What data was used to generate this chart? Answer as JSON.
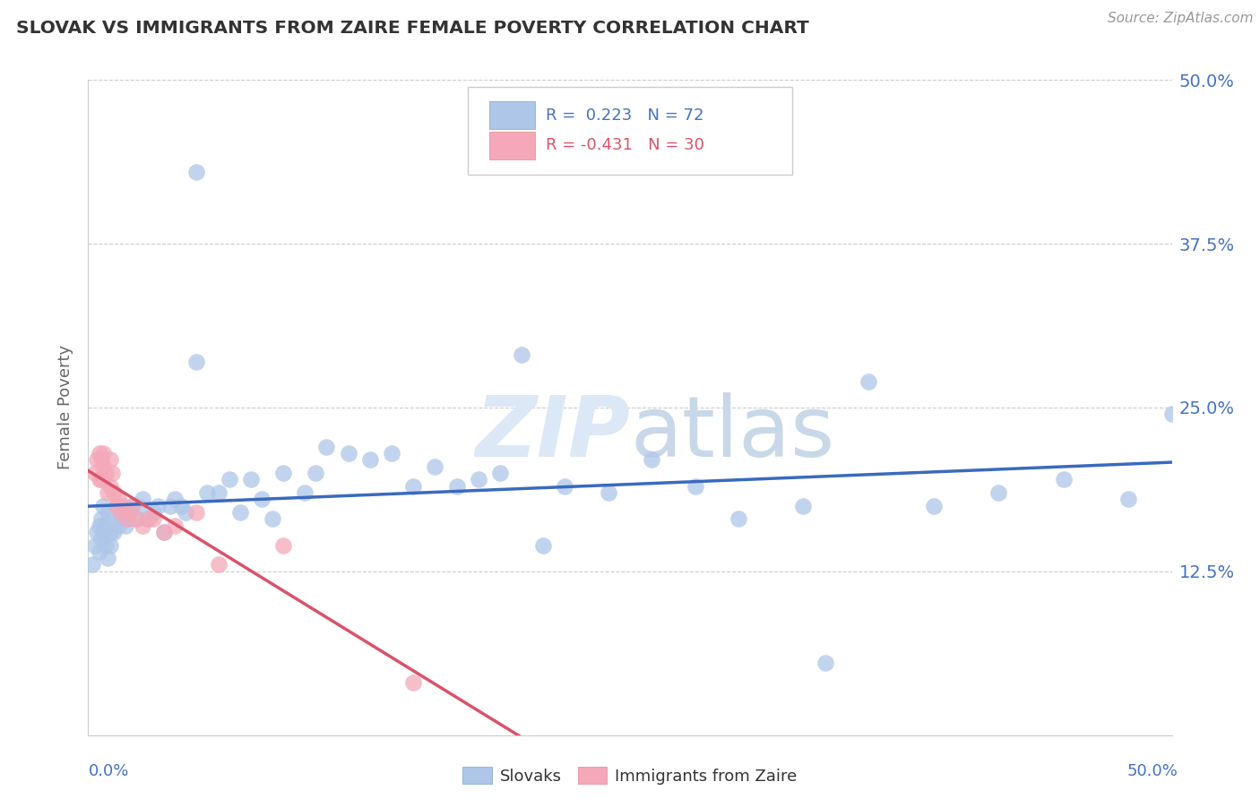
{
  "title": "SLOVAK VS IMMIGRANTS FROM ZAIRE FEMALE POVERTY CORRELATION CHART",
  "source": "Source: ZipAtlas.com",
  "ylabel": "Female Poverty",
  "legend_label1": "Slovaks",
  "legend_label2": "Immigrants from Zaire",
  "R1": 0.223,
  "N1": 72,
  "R2": -0.431,
  "N2": 30,
  "color_blue": "#aec6e8",
  "color_pink": "#f4a8b8",
  "color_blue_line": "#3a6abf",
  "color_pink_line": "#d9536a",
  "color_blue_text": "#4472c4",
  "color_pink_text": "#d9536a",
  "watermark_color": "#dce8f5",
  "blue_x": [
    0.002,
    0.003,
    0.004,
    0.005,
    0.005,
    0.006,
    0.006,
    0.007,
    0.007,
    0.008,
    0.008,
    0.009,
    0.009,
    0.01,
    0.01,
    0.011,
    0.012,
    0.013,
    0.014,
    0.015,
    0.016,
    0.017,
    0.018,
    0.019,
    0.02,
    0.022,
    0.023,
    0.025,
    0.027,
    0.03,
    0.032,
    0.035,
    0.038,
    0.04,
    0.043,
    0.045,
    0.05,
    0.05,
    0.055,
    0.06,
    0.065,
    0.07,
    0.075,
    0.08,
    0.085,
    0.09,
    0.1,
    0.105,
    0.11,
    0.12,
    0.13,
    0.14,
    0.15,
    0.16,
    0.17,
    0.18,
    0.19,
    0.2,
    0.22,
    0.24,
    0.26,
    0.28,
    0.3,
    0.33,
    0.36,
    0.39,
    0.42,
    0.45,
    0.48,
    0.5,
    0.21,
    0.34
  ],
  "blue_y": [
    0.13,
    0.145,
    0.155,
    0.16,
    0.14,
    0.15,
    0.165,
    0.155,
    0.175,
    0.145,
    0.16,
    0.17,
    0.135,
    0.155,
    0.145,
    0.165,
    0.155,
    0.175,
    0.16,
    0.165,
    0.17,
    0.16,
    0.165,
    0.17,
    0.175,
    0.165,
    0.175,
    0.18,
    0.165,
    0.17,
    0.175,
    0.155,
    0.175,
    0.18,
    0.175,
    0.17,
    0.43,
    0.285,
    0.185,
    0.185,
    0.195,
    0.17,
    0.195,
    0.18,
    0.165,
    0.2,
    0.185,
    0.2,
    0.22,
    0.215,
    0.21,
    0.215,
    0.19,
    0.205,
    0.19,
    0.195,
    0.2,
    0.29,
    0.19,
    0.185,
    0.21,
    0.19,
    0.165,
    0.175,
    0.27,
    0.175,
    0.185,
    0.195,
    0.18,
    0.245,
    0.145,
    0.055
  ],
  "pink_x": [
    0.003,
    0.004,
    0.005,
    0.005,
    0.006,
    0.006,
    0.007,
    0.007,
    0.008,
    0.009,
    0.01,
    0.01,
    0.011,
    0.012,
    0.013,
    0.014,
    0.015,
    0.016,
    0.018,
    0.02,
    0.022,
    0.025,
    0.028,
    0.03,
    0.035,
    0.04,
    0.05,
    0.06,
    0.09,
    0.15
  ],
  "pink_y": [
    0.2,
    0.21,
    0.195,
    0.215,
    0.21,
    0.195,
    0.205,
    0.215,
    0.2,
    0.185,
    0.19,
    0.21,
    0.2,
    0.185,
    0.175,
    0.18,
    0.17,
    0.175,
    0.165,
    0.175,
    0.165,
    0.16,
    0.165,
    0.165,
    0.155,
    0.16,
    0.17,
    0.13,
    0.145,
    0.04
  ],
  "xlim": [
    0.0,
    0.5
  ],
  "ylim": [
    0.0,
    0.5
  ],
  "y_ticks": [
    0.0,
    0.125,
    0.25,
    0.375,
    0.5
  ],
  "y_tick_labels_right": [
    "",
    "12.5%",
    "25.0%",
    "37.5%",
    "50.0%"
  ]
}
